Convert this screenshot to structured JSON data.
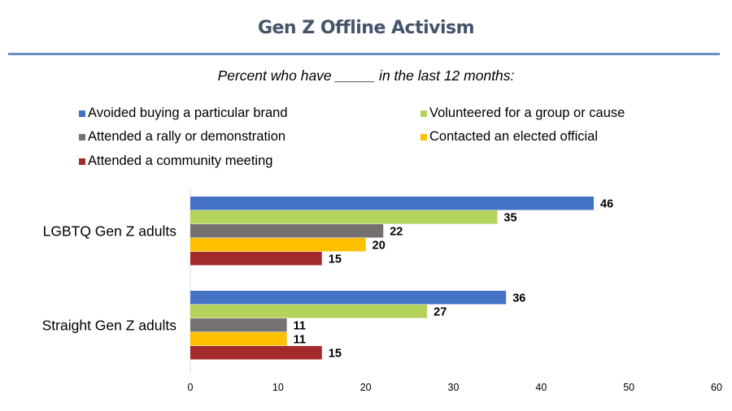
{
  "title": "Gen Z Offline Activism",
  "subtitle": "Percent who have _____ in the last 12 months:",
  "chart_data": {
    "type": "bar",
    "orientation": "horizontal",
    "title": "Gen Z Offline Activism",
    "subtitle": "Percent who have _____ in the last 12 months:",
    "xlabel": "",
    "ylabel": "",
    "xlim": [
      0,
      60
    ],
    "xticks": [
      0,
      10,
      20,
      30,
      40,
      50,
      60
    ],
    "grid": false,
    "legend_position": "top",
    "categories": [
      "LGBTQ Gen Z adults",
      "Straight Gen Z adults"
    ],
    "series": [
      {
        "name": "Avoided buying a particular brand",
        "color": "#4472c4",
        "values": [
          46,
          36
        ]
      },
      {
        "name": "Volunteered for a group or cause",
        "color": "#b4d35b",
        "values": [
          35,
          27
        ]
      },
      {
        "name": "Attended a rally or demonstration",
        "color": "#767171",
        "values": [
          22,
          11
        ]
      },
      {
        "name": "Contacted an elected official",
        "color": "#ffc000",
        "values": [
          20,
          11
        ]
      },
      {
        "name": "Attended a community meeting",
        "color": "#a32a2a",
        "values": [
          15,
          15
        ]
      }
    ]
  }
}
